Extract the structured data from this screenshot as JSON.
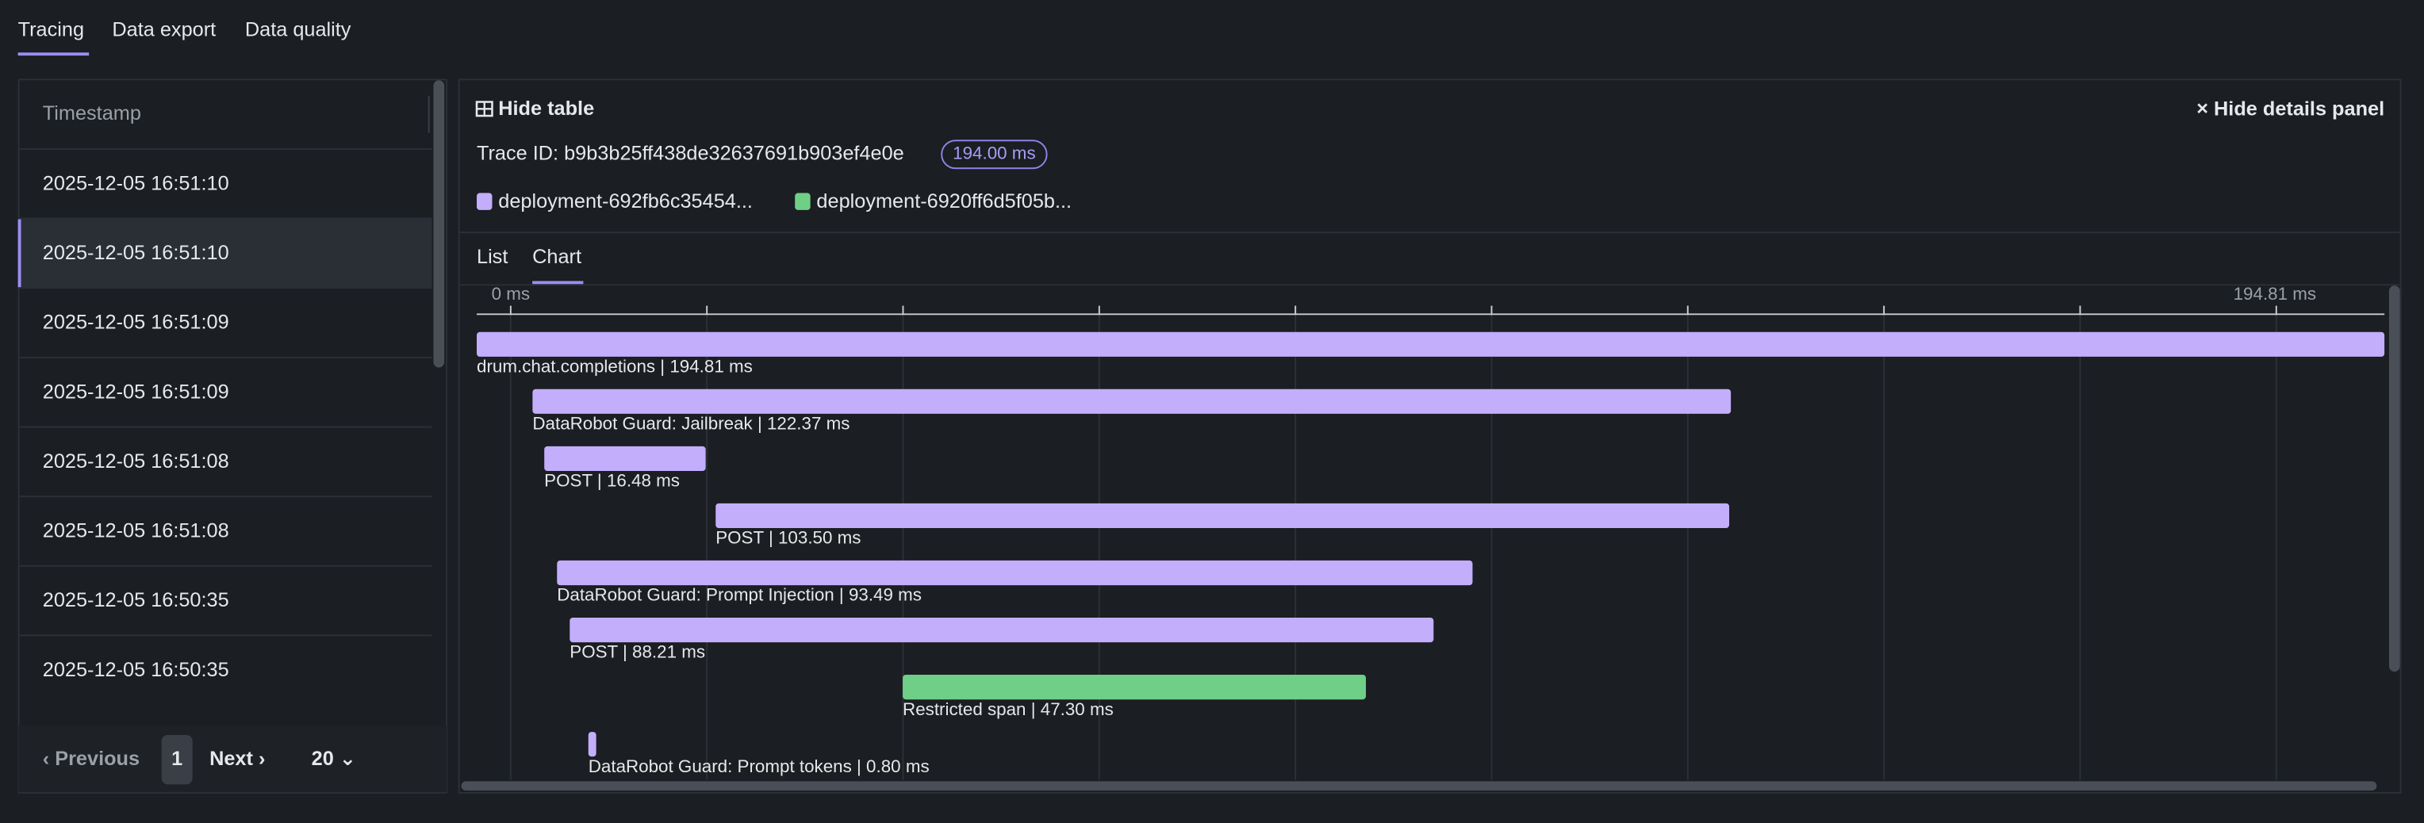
{
  "tabs": [
    "Tracing",
    "Data export",
    "Data quality"
  ],
  "table": {
    "header": "Timestamp",
    "rows": [
      "2025-12-05 16:51:10",
      "2025-12-05 16:51:10",
      "2025-12-05 16:51:09",
      "2025-12-05 16:51:09",
      "2025-12-05 16:51:08",
      "2025-12-05 16:51:08",
      "2025-12-05 16:50:35",
      "2025-12-05 16:50:35"
    ]
  },
  "pagination": {
    "previous": "Previous",
    "page": "1",
    "next": "Next",
    "page_size": "20"
  },
  "details": {
    "hide_table": "Hide table",
    "hide_panel": "Hide details panel",
    "trace_id": "Trace ID: b9b3b25ff438de32637691b903ef4e0e",
    "duration_badge": "194.00 ms",
    "legend": [
      {
        "name": "deployment-692fb6c35454...",
        "color": "#c3aefc"
      },
      {
        "name": "deployment-6920ff6d5f05b...",
        "color": "#6fcf86"
      }
    ],
    "subtabs": [
      "List",
      "Chart"
    ],
    "axis_ticks": [
      {
        "value": 0,
        "label": "0 ms"
      },
      {
        "value": 194.81,
        "label": "194.81 ms"
      }
    ],
    "spans": [
      {
        "label": "drum.chat.completions | 194.81 ms",
        "start_ms": 0,
        "duration_ms": 194.81,
        "color": "#c3aefc"
      },
      {
        "label": "DataRobot Guard: Jailbreak | 122.37 ms",
        "start_ms": 5.7,
        "duration_ms": 122.37,
        "color": "#c3aefc"
      },
      {
        "label": "POST | 16.48 ms",
        "start_ms": 6.9,
        "duration_ms": 16.48,
        "color": "#c3aefc"
      },
      {
        "label": "POST | 103.50 ms",
        "start_ms": 24.4,
        "duration_ms": 103.5,
        "color": "#c3aefc"
      },
      {
        "label": "DataRobot Guard: Prompt Injection | 93.49 ms",
        "start_ms": 8.2,
        "duration_ms": 93.49,
        "color": "#c3aefc"
      },
      {
        "label": "POST | 88.21 ms",
        "start_ms": 9.5,
        "duration_ms": 88.21,
        "color": "#c3aefc"
      },
      {
        "label": "Restricted span | 47.30 ms",
        "start_ms": 43.5,
        "duration_ms": 47.3,
        "color": "#6fcf86"
      },
      {
        "label": "DataRobot Guard: Prompt tokens | 0.80 ms",
        "start_ms": 11.4,
        "duration_ms": 0.8,
        "color": "#c3aefc"
      }
    ]
  }
}
